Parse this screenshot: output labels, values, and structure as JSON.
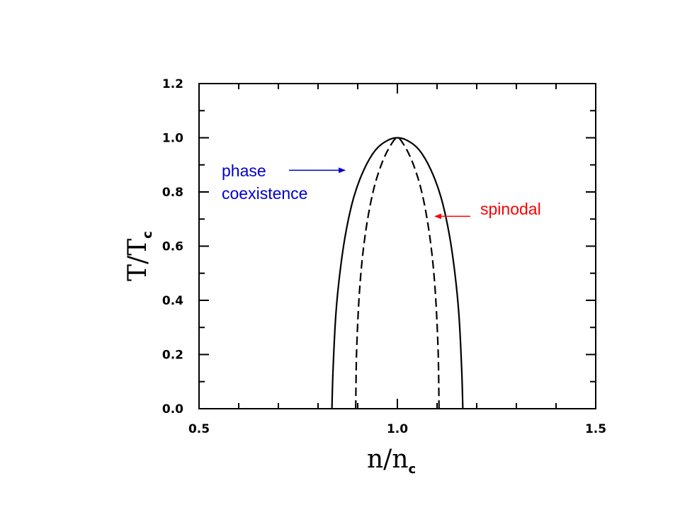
{
  "chart_data": {
    "type": "line",
    "xlabel": {
      "main": "n/n",
      "sub": "c"
    },
    "ylabel": {
      "main": "T/T",
      "sub": "c"
    },
    "xlim": [
      0.5,
      1.5
    ],
    "ylim": [
      0.0,
      1.2
    ],
    "x_ticks": [
      "0.5",
      "1.0",
      "1.5"
    ],
    "y_ticks": [
      "0.0",
      "0.2",
      "0.4",
      "0.6",
      "0.8",
      "1.0",
      "1.2"
    ],
    "grid": false,
    "series": [
      {
        "style": "solid",
        "color": "#000000",
        "x": [
          0.835,
          0.838,
          0.845,
          0.855,
          0.87,
          0.89,
          0.915,
          0.945,
          0.975,
          1.0,
          1.025,
          1.055,
          1.085,
          1.11,
          1.13,
          1.145,
          1.155,
          1.162,
          1.165
        ],
        "y": [
          0.0,
          0.15,
          0.35,
          0.5,
          0.65,
          0.78,
          0.88,
          0.955,
          0.99,
          1.0,
          0.99,
          0.955,
          0.88,
          0.78,
          0.65,
          0.5,
          0.35,
          0.15,
          0.0
        ]
      },
      {
        "style": "dashed",
        "color": "#000000",
        "x": [
          0.895,
          0.897,
          0.903,
          0.912,
          0.925,
          0.942,
          0.962,
          0.982,
          1.0,
          1.018,
          1.038,
          1.058,
          1.075,
          1.088,
          1.097,
          1.103,
          1.105
        ],
        "y": [
          0.0,
          0.2,
          0.4,
          0.56,
          0.7,
          0.82,
          0.91,
          0.97,
          1.0,
          0.97,
          0.91,
          0.82,
          0.7,
          0.56,
          0.4,
          0.2,
          0.0
        ]
      }
    ],
    "annotations": [
      {
        "lines": [
          "phase",
          "coexistence"
        ],
        "color": "#0000cc",
        "points_to": {
          "x": 0.868,
          "y": 0.88
        }
      },
      {
        "lines": [
          "spinodal"
        ],
        "color": "#ff0000",
        "points_to": {
          "x": 1.095,
          "y": 0.71
        }
      }
    ]
  }
}
